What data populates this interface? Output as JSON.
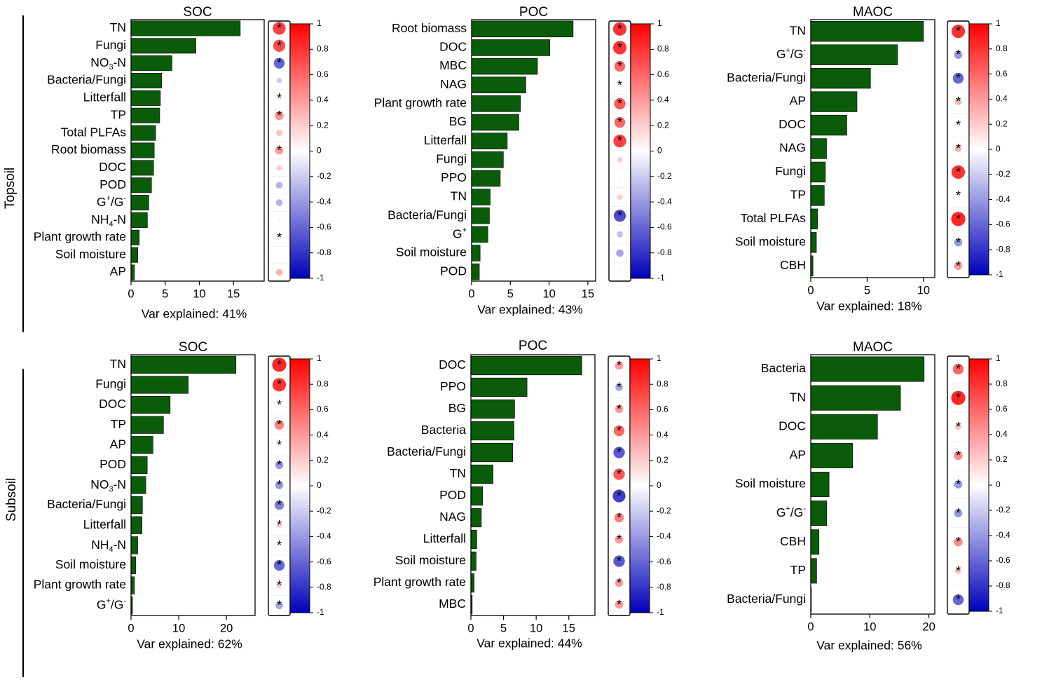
{
  "rows": [
    "Topsoil",
    "Subsoil"
  ],
  "colorbar_ticks": [
    "1",
    "0.8",
    "0.6",
    "0.4",
    "0.2",
    "0",
    "-0.2",
    "-0.4",
    "-0.6",
    "-0.8",
    "-1"
  ],
  "colors": {
    "bar": "#0a5c0a",
    "positive": "#ff0000",
    "negative": "#0000b8",
    "neutral": "#ffffff"
  },
  "chart_data": [
    {
      "type": "bar",
      "orientation": "horizontal",
      "row": "Topsoil",
      "title": "SOC",
      "xlabel": "Var explained: 41%",
      "xlim": [
        0,
        19.5
      ],
      "xticks": [
        0,
        5,
        10,
        15
      ],
      "categories": [
        "TN",
        "Fungi",
        "NO3-N",
        "Bacteria/Fungi",
        "Litterfall",
        "TP",
        "Total PLFAs",
        "Root biomass",
        "DOC",
        "POD",
        "G+/G-",
        "NH4-N",
        "Plant growth rate",
        "Soil moisture",
        "AP"
      ],
      "values": [
        16.0,
        9.5,
        6.0,
        4.5,
        4.3,
        4.2,
        3.6,
        3.4,
        3.3,
        3.0,
        2.6,
        2.4,
        1.2,
        1.0,
        0.5
      ],
      "correlation": [
        0.75,
        0.7,
        -0.6,
        -0.2,
        0.1,
        0.45,
        0.25,
        0.4,
        0.2,
        -0.3,
        -0.3,
        0.05,
        0.1,
        0.0,
        0.3
      ],
      "significant": [
        true,
        true,
        true,
        false,
        true,
        true,
        false,
        true,
        false,
        false,
        false,
        false,
        true,
        false,
        false
      ]
    },
    {
      "type": "bar",
      "orientation": "horizontal",
      "row": "Topsoil",
      "title": "POC",
      "xlabel": "Var explained: 43%",
      "xlim": [
        0,
        16
      ],
      "xticks": [
        0,
        5,
        10,
        15
      ],
      "categories": [
        "Root biomass",
        "DOC",
        "MBC",
        "NAG",
        "Plant growth rate",
        "BG",
        "Litterfall",
        "Fungi",
        "PPO",
        "TN",
        "Bacteria/Fungi",
        "G+",
        "Soil moisture",
        "POD"
      ],
      "values": [
        13.1,
        10.1,
        8.5,
        7.0,
        6.3,
        6.1,
        4.6,
        4.1,
        3.7,
        2.4,
        2.3,
        2.1,
        1.1,
        1.0
      ],
      "correlation": [
        0.8,
        0.8,
        0.6,
        0.1,
        0.65,
        0.6,
        0.75,
        0.2,
        0.05,
        0.2,
        -0.7,
        -0.25,
        -0.35,
        0.05
      ],
      "significant": [
        true,
        true,
        true,
        true,
        true,
        true,
        true,
        false,
        false,
        false,
        true,
        false,
        false,
        false
      ]
    },
    {
      "type": "bar",
      "orientation": "horizontal",
      "row": "Topsoil",
      "title": "MAOC",
      "xlabel": "Var explained: 18%",
      "xlim": [
        0,
        11
      ],
      "xticks": [
        0,
        5,
        10
      ],
      "categories": [
        "TN",
        "G+/G-",
        "Bacteria/Fungi",
        "AP",
        "DOC",
        "NAG",
        "Fungi",
        "TP",
        "Total PLFAs",
        "Soil moisture",
        "CBH"
      ],
      "values": [
        10.0,
        7.7,
        5.3,
        4.1,
        3.2,
        1.4,
        1.3,
        1.2,
        0.6,
        0.5,
        0.2
      ],
      "correlation": [
        0.8,
        -0.4,
        -0.6,
        0.3,
        0.05,
        0.3,
        0.8,
        0.05,
        0.85,
        -0.4,
        0.4
      ],
      "significant": [
        true,
        true,
        true,
        true,
        true,
        true,
        true,
        true,
        true,
        true,
        true
      ]
    },
    {
      "type": "bar",
      "orientation": "horizontal",
      "row": "Subsoil",
      "title": "SOC",
      "xlabel": "Var explained: 62%",
      "xlim": [
        0,
        26
      ],
      "xticks": [
        0,
        10,
        20
      ],
      "categories": [
        "TN",
        "Fungi",
        "DOC",
        "TP",
        "AP",
        "POD",
        "NO3-N",
        "Bacteria/Fungi",
        "Litterfall",
        "NH4-N",
        "Soil moisture",
        "Plant growth rate",
        "G+/G-"
      ],
      "values": [
        22.0,
        12.0,
        8.2,
        6.8,
        4.6,
        3.4,
        3.1,
        2.4,
        2.3,
        1.4,
        1.0,
        0.7,
        0.3
      ],
      "correlation": [
        0.85,
        0.8,
        0.05,
        0.5,
        0.05,
        -0.4,
        -0.4,
        -0.5,
        0.2,
        0.05,
        -0.6,
        0.2,
        -0.35
      ],
      "significant": [
        true,
        true,
        true,
        true,
        true,
        true,
        true,
        true,
        true,
        true,
        true,
        true,
        true
      ]
    },
    {
      "type": "bar",
      "orientation": "horizontal",
      "row": "Subsoil",
      "title": "POC",
      "xlabel": "Var explained: 44%",
      "xlim": [
        0,
        19
      ],
      "xticks": [
        0,
        5,
        10,
        15
      ],
      "categories": [
        "DOC",
        "PPO",
        "BG",
        "Bacteria",
        "Bacteria/Fungi",
        "TN",
        "POD",
        "NAG",
        "Litterfall",
        "Soil moisture",
        "Plant growth rate",
        "MBC"
      ],
      "values": [
        17.0,
        8.6,
        6.7,
        6.6,
        6.4,
        3.4,
        1.8,
        1.6,
        0.9,
        0.8,
        0.5,
        0.2
      ],
      "correlation": [
        0.4,
        -0.35,
        0.4,
        0.6,
        -0.65,
        0.65,
        -0.75,
        0.5,
        0.4,
        -0.65,
        0.4,
        0.4
      ],
      "significant": [
        true,
        true,
        true,
        true,
        true,
        true,
        true,
        true,
        true,
        true,
        true,
        true
      ]
    },
    {
      "type": "bar",
      "orientation": "horizontal",
      "row": "Subsoil",
      "title": "MAOC",
      "xlabel": "Var explained: 56%",
      "xlim": [
        0,
        21
      ],
      "xticks": [
        0,
        10,
        20
      ],
      "categories": [
        "Bacteria",
        "TN",
        "DOC",
        "AP",
        "Soil moisture",
        "G+/G-",
        "CBH",
        "TP",
        "Bacteria/Fungi"
      ],
      "values": [
        19.2,
        15.2,
        11.3,
        7.1,
        3.1,
        2.7,
        1.4,
        1.0,
        0.1
      ],
      "correlation": [
        0.6,
        0.85,
        0.25,
        0.45,
        -0.4,
        -0.4,
        0.45,
        0.25,
        -0.6
      ],
      "significant": [
        true,
        true,
        true,
        true,
        true,
        true,
        true,
        true,
        true
      ]
    }
  ]
}
